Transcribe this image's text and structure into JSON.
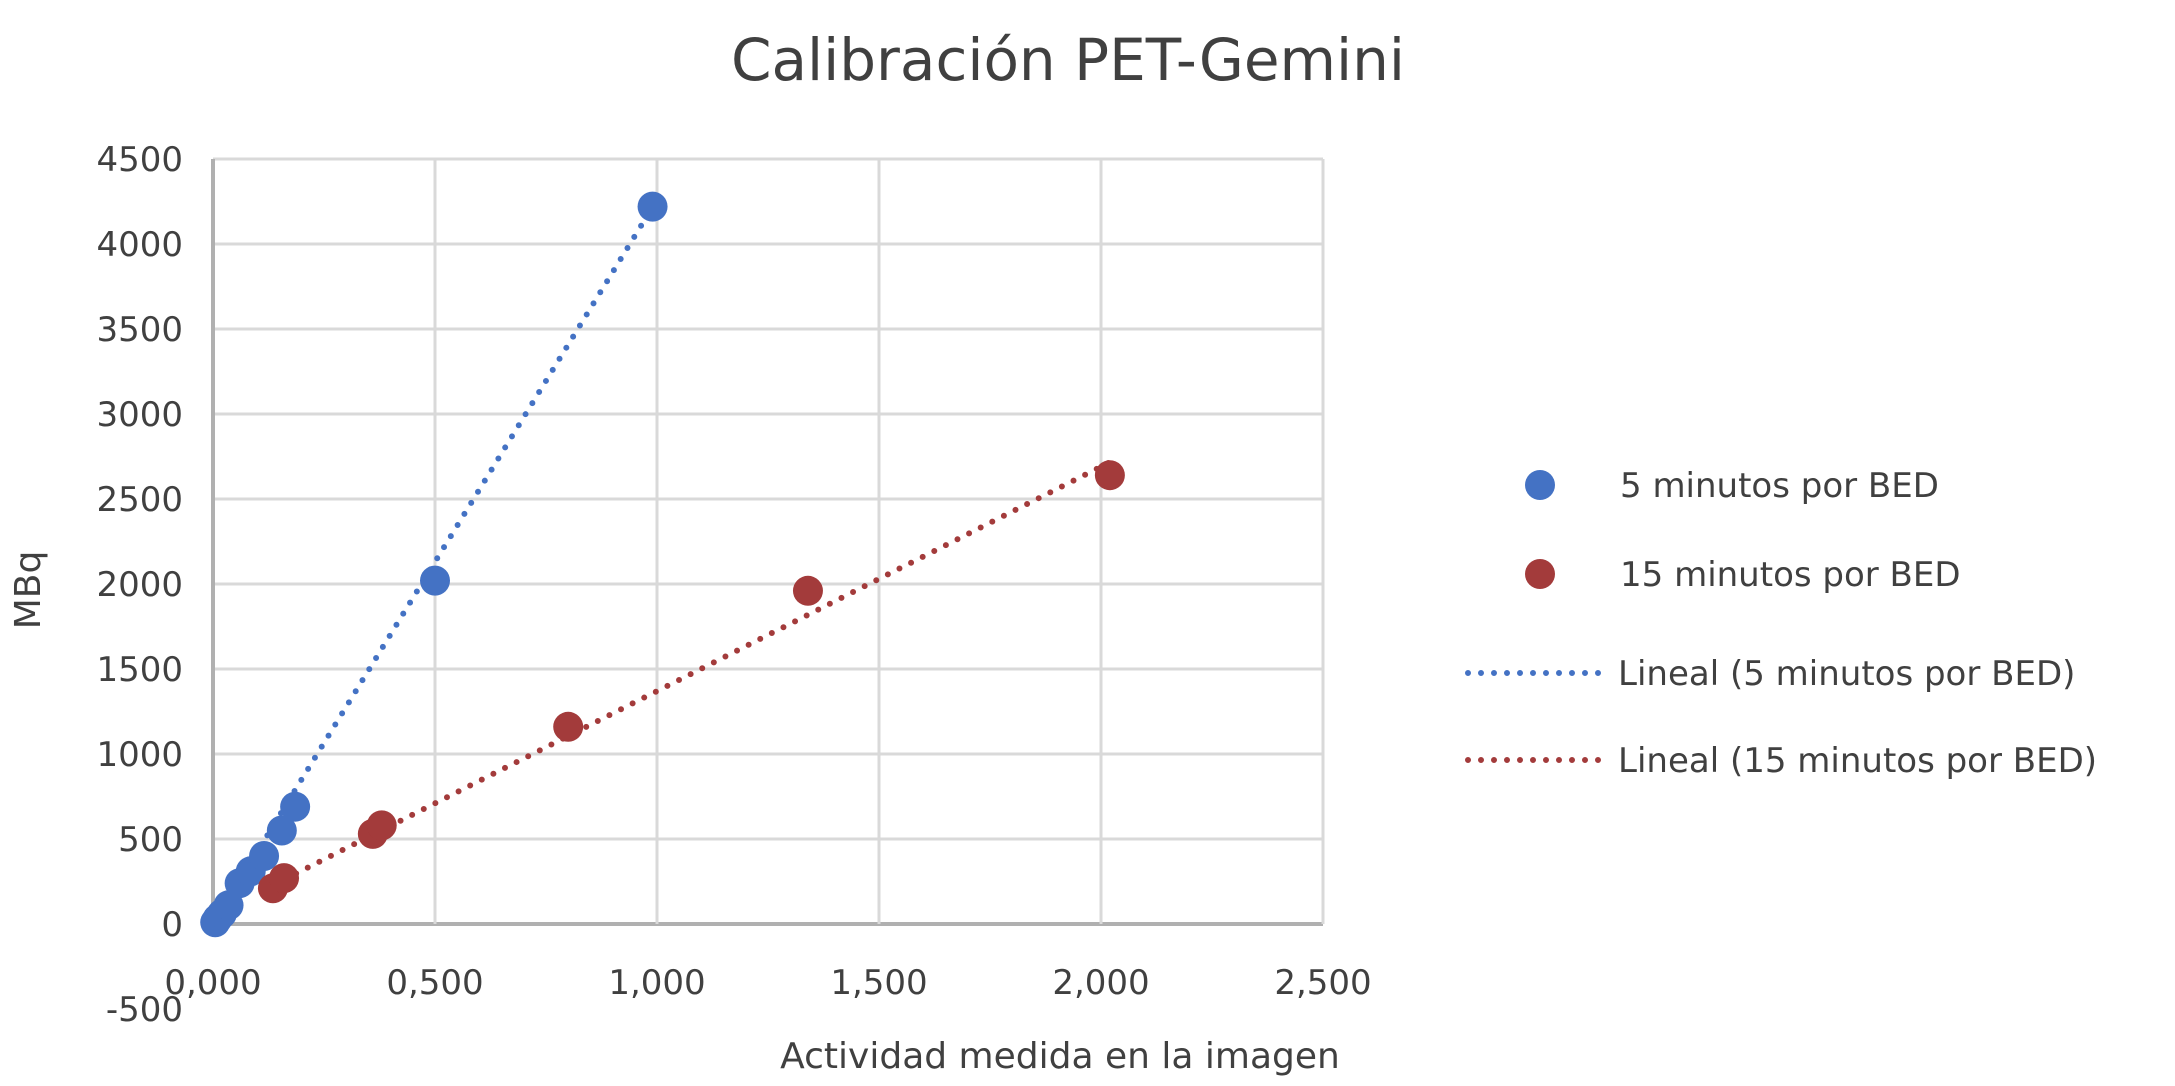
{
  "chart_data": {
    "type": "scatter",
    "title": "Calibración PET-Gemini",
    "xlabel": "Actividad medida en la imagen",
    "ylabel": "MBq",
    "xlim": [
      0,
      2.5
    ],
    "ylim": [
      -500,
      4500
    ],
    "x_ticks": [
      "0,000",
      "0,500",
      "1,000",
      "1,500",
      "2,000",
      "2,500"
    ],
    "x_tick_values": [
      0,
      0.5,
      1,
      1.5,
      2,
      2.5
    ],
    "y_ticks": [
      "-500",
      "0",
      "500",
      "1000",
      "1500",
      "2000",
      "2500",
      "3000",
      "3500",
      "4000",
      "4500"
    ],
    "y_tick_values": [
      -500,
      0,
      500,
      1000,
      1500,
      2000,
      2500,
      3000,
      3500,
      4000,
      4500
    ],
    "grid": true,
    "legend_position": "right",
    "series": [
      {
        "name": "5 minutos por BED",
        "color": "#4472C4",
        "x": [
          0.005,
          0.01,
          0.02,
          0.035,
          0.06,
          0.085,
          0.115,
          0.155,
          0.185,
          0.5,
          0.99
        ],
        "y": [
          10,
          30,
          60,
          110,
          240,
          310,
          400,
          550,
          690,
          2020,
          4220
        ]
      },
      {
        "name": "15 minutos por BED",
        "color": "#A33B3B",
        "x": [
          0.135,
          0.16,
          0.36,
          0.38,
          0.8,
          1.34,
          2.02
        ],
        "y": [
          210,
          270,
          530,
          580,
          1160,
          1960,
          2640
        ]
      }
    ],
    "trendlines": [
      {
        "name": "Lineal (5 minutos por BED)",
        "color": "#4472C4",
        "slope": 4260,
        "intercept": 0,
        "x_range": [
          0,
          0.99
        ]
      },
      {
        "name": "Lineal (15 minutos por BED)",
        "color": "#A33B3B",
        "slope": 1320,
        "intercept": 50,
        "x_range": [
          0.135,
          2.02
        ]
      }
    ]
  }
}
